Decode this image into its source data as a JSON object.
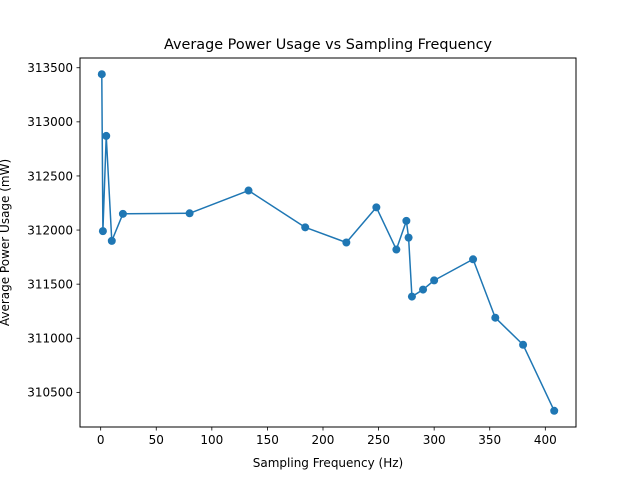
{
  "chart_data": {
    "type": "line",
    "title": "Average Power Usage vs Sampling Frequency",
    "xlabel": "Sampling Frequency (Hz)",
    "ylabel": "Average Power Usage (mW)",
    "xlim": [
      -18.6,
      427.6
    ],
    "ylim": [
      310180,
      313590
    ],
    "x_ticks": [
      0,
      50,
      100,
      150,
      200,
      250,
      300,
      350,
      400
    ],
    "y_ticks": [
      310500,
      311000,
      311500,
      312000,
      312500,
      313000,
      313500
    ],
    "x_tick_labels": [
      "0",
      "50",
      "100",
      "150",
      "200",
      "250",
      "300",
      "350",
      "400"
    ],
    "y_tick_labels": [
      "310500",
      "311000",
      "311500",
      "312000",
      "312500",
      "313000",
      "313500"
    ],
    "grid": false,
    "color": "#1f77b4",
    "marker": "circle",
    "series": [
      {
        "x": [
          1,
          2,
          5,
          10,
          20,
          80,
          133,
          184,
          221,
          248,
          266,
          275,
          277,
          280,
          290,
          300,
          335,
          355,
          380,
          408
        ],
        "y": [
          313440,
          311990,
          312870,
          311900,
          312150,
          312155,
          312365,
          312025,
          311885,
          312210,
          311820,
          312085,
          311930,
          311385,
          311450,
          311535,
          311730,
          311190,
          310940,
          310330
        ]
      }
    ]
  }
}
